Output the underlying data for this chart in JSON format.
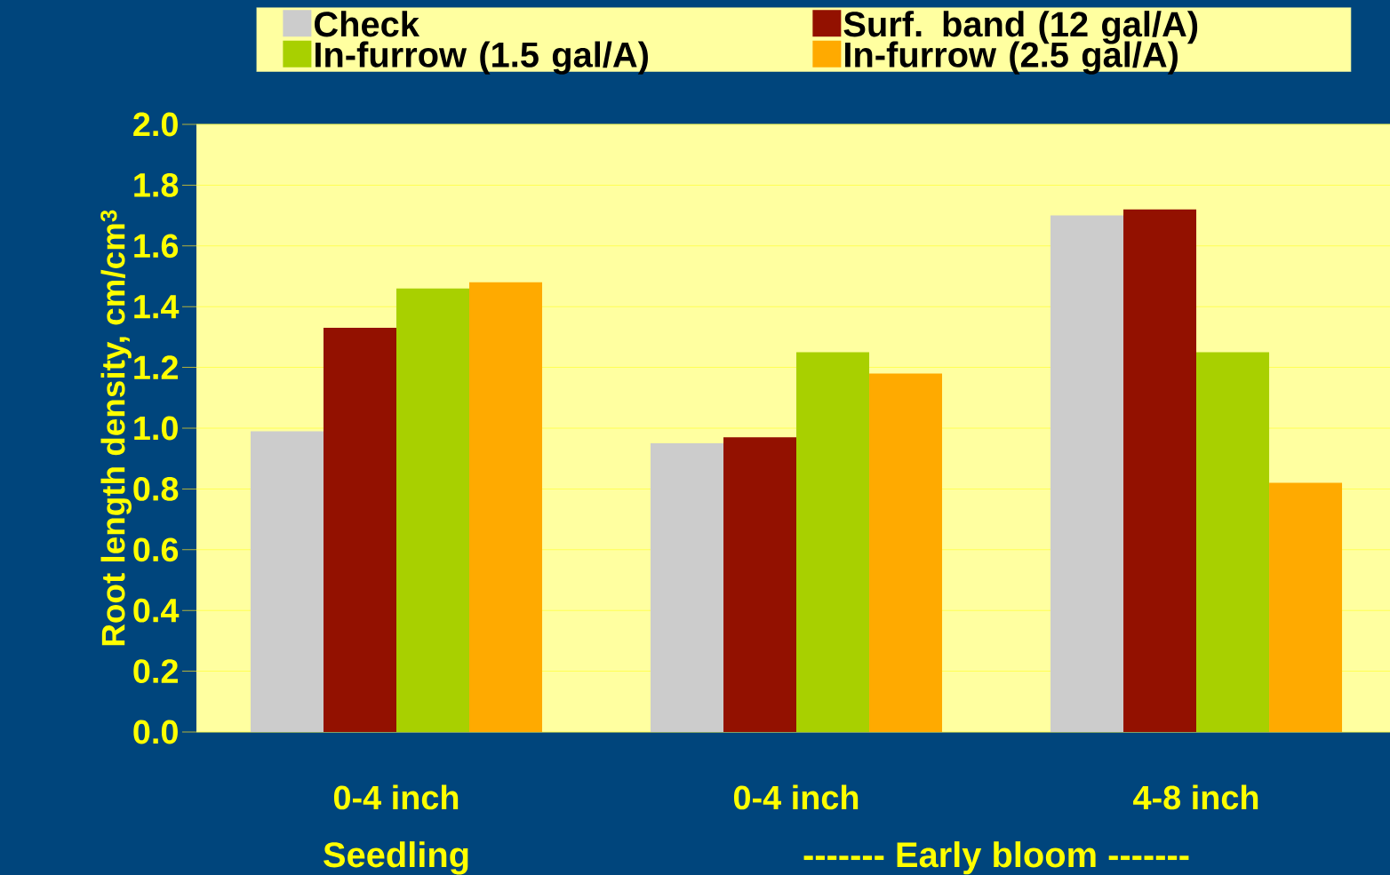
{
  "chart_data": {
    "type": "bar",
    "ylabel": "Root length density, cm/cm$^{3}$",
    "categories": [
      "0-4 inch",
      "0-4 inch",
      "4-8 inch"
    ],
    "series": [
      {
        "name": "Check",
        "color": "#cccccc",
        "values": [
          0.99,
          0.95,
          1.7
        ]
      },
      {
        "name": "Surf. band (12 gal/A)",
        "color": "#931100",
        "values": [
          1.33,
          0.97,
          1.72
        ]
      },
      {
        "name": "In-furrow (1.5 gal/A)",
        "color": "#a8d000",
        "values": [
          1.46,
          1.25,
          1.25
        ]
      },
      {
        "name": "In-furrow (2.5 gal/A)",
        "color": "#ffaa00",
        "values": [
          1.48,
          1.18,
          0.82
        ]
      }
    ],
    "ylim": [
      0,
      2.0
    ],
    "yticks": [
      {
        "value": 0,
        "label": "0.0"
      },
      {
        "value": 0.2,
        "label": "0.2"
      },
      {
        "value": 0.4,
        "label": "0.4"
      },
      {
        "value": 0.6,
        "label": "0.6"
      },
      {
        "value": 0.8,
        "label": "0.8"
      },
      {
        "value": 1.0,
        "label": "1.0"
      },
      {
        "value": 1.2,
        "label": "1.2"
      },
      {
        "value": 1.4,
        "label": "1.4"
      },
      {
        "value": 1.6,
        "label": "1.6"
      },
      {
        "value": 1.8,
        "label": "1.8"
      },
      {
        "value": 2.0,
        "label": "2.0"
      }
    ],
    "grid": "y",
    "legend": "top",
    "annotations": [
      "Seedling",
      "------- Early bloom -------"
    ]
  }
}
